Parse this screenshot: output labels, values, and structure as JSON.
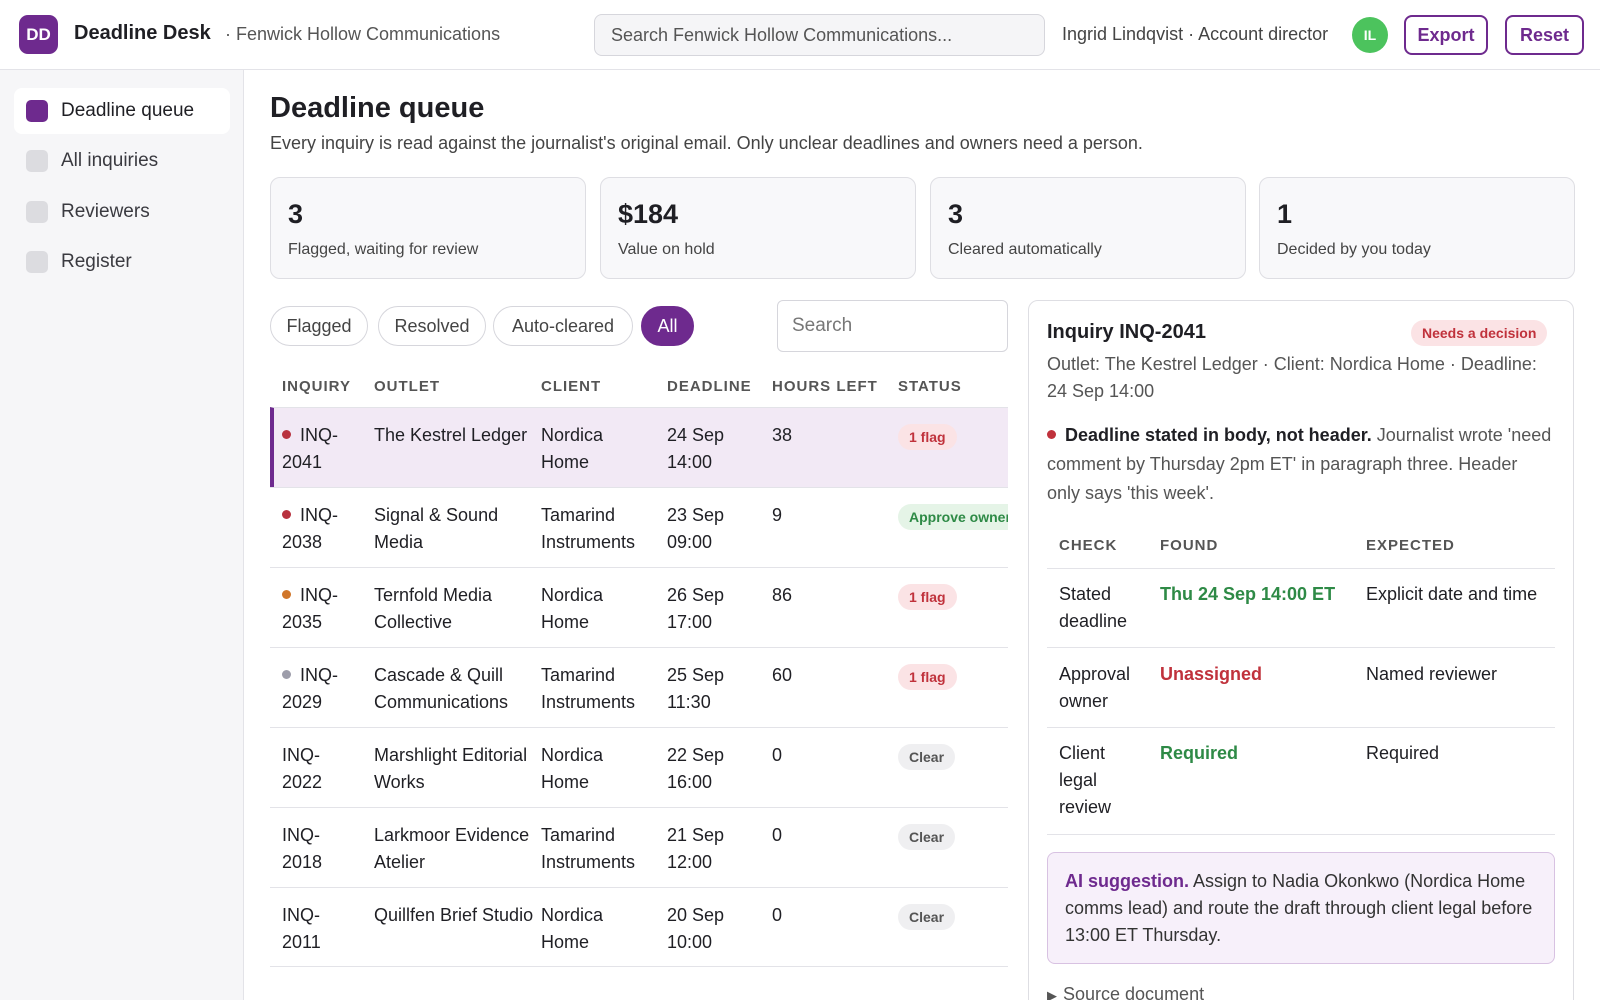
{
  "topbar": {
    "logo": "DD",
    "app_name": "Deadline Desk",
    "org_name": "· Fenwick Hollow Communications",
    "search_placeholder": "Search Fenwick Hollow Communications...",
    "user": "Ingrid Lindqvist · Account director",
    "avatar": "IL",
    "avatar_color": "#4cc35d",
    "export_label": "Export",
    "reset_label": "Reset"
  },
  "sidebar": {
    "items": [
      {
        "label": "Deadline queue",
        "active": true
      },
      {
        "label": "All inquiries",
        "active": false
      },
      {
        "label": "Reviewers",
        "active": false
      },
      {
        "label": "Register",
        "active": false
      }
    ]
  },
  "page": {
    "title": "Deadline queue",
    "subtitle": "Every inquiry is read against the journalist's original email. Only unclear deadlines and owners need a person."
  },
  "stats": [
    {
      "value": "3",
      "label": "Flagged, waiting for review"
    },
    {
      "value": "$184",
      "label": "Value on hold"
    },
    {
      "value": "3",
      "label": "Cleared automatically"
    },
    {
      "value": "1",
      "label": "Decided by you today"
    }
  ],
  "filters": {
    "chips": [
      "Flagged",
      "Resolved",
      "Auto-cleared",
      "All"
    ],
    "active": "All",
    "search_placeholder": "Search"
  },
  "table": {
    "headers": [
      "INQUIRY",
      "OUTLET",
      "CLIENT",
      "DEADLINE",
      "HOURS LEFT",
      "STATUS"
    ],
    "rows": [
      {
        "id": "INQ-2041",
        "dot": "#b8323f",
        "outlet": "The Kestrel Ledger",
        "client": "Nordica Home",
        "deadline": "24 Sep 14:00",
        "hours": "38",
        "status": "1 flag",
        "status_kind": "flag",
        "selected": true
      },
      {
        "id": "INQ-2038",
        "dot": "#b8323f",
        "outlet": "Signal & Sound Media",
        "client": "Tamarind Instruments",
        "deadline": "23 Sep 09:00",
        "hours": "9",
        "status": "Approve owner",
        "status_kind": "approve",
        "selected": false
      },
      {
        "id": "INQ-2035",
        "dot": "#d0762a",
        "outlet": "Ternfold Media Collective",
        "client": "Nordica Home",
        "deadline": "26 Sep 17:00",
        "hours": "86",
        "status": "1 flag",
        "status_kind": "flag",
        "selected": false
      },
      {
        "id": "INQ-2029",
        "dot": "#9d9daa",
        "outlet": "Cascade & Quill Communications",
        "client": "Tamarind Instruments",
        "deadline": "25 Sep 11:30",
        "hours": "60",
        "status": "1 flag",
        "status_kind": "flag",
        "selected": false
      },
      {
        "id": "INQ-2022",
        "dot": null,
        "outlet": "Marshlight Editorial Works",
        "client": "Nordica Home",
        "deadline": "22 Sep 16:00",
        "hours": "0",
        "status": "Clear",
        "status_kind": "clear",
        "selected": false
      },
      {
        "id": "INQ-2018",
        "dot": null,
        "outlet": "Larkmoor Evidence Atelier",
        "client": "Tamarind Instruments",
        "deadline": "21 Sep 12:00",
        "hours": "0",
        "status": "Clear",
        "status_kind": "clear",
        "selected": false
      },
      {
        "id": "INQ-2011",
        "dot": null,
        "outlet": "Quillfen Brief Studio",
        "client": "Nordica Home",
        "deadline": "20 Sep 10:00",
        "hours": "0",
        "status": "Clear",
        "status_kind": "clear",
        "selected": false
      }
    ]
  },
  "detail": {
    "title": "Inquiry INQ-2041",
    "badge": "Needs a decision",
    "meta": "Outlet: The Kestrel Ledger · Client: Nordica Home · Deadline: 24 Sep 14:00",
    "issue_title": "Deadline stated in body, not header.",
    "issue_text": "Journalist wrote 'need comment by Thursday 2pm ET' in paragraph three. Header only says 'this week'.",
    "checks_headers": [
      "CHECK",
      "FOUND",
      "EXPECTED"
    ],
    "checks": [
      {
        "check": "Stated deadline",
        "found": "Thu 24 Sep 14:00 ET",
        "found_kind": "green",
        "expected": "Explicit date and time"
      },
      {
        "check": "Approval owner",
        "found": "Unassigned",
        "found_kind": "red",
        "expected": "Named reviewer"
      },
      {
        "check": "Client legal review",
        "found": "Required",
        "found_kind": "green",
        "expected": "Required"
      }
    ],
    "ai_label": "AI suggestion.",
    "ai_text": "Assign to Nadia Okonkwo (Nordica Home comms lead) and route the draft through client legal before 13:00 ET Thursday.",
    "source_label": "Source document"
  },
  "colors": {
    "brand": "#6e2a8e",
    "flag_red": "#c0323c",
    "ok_green": "#2e8a46"
  }
}
